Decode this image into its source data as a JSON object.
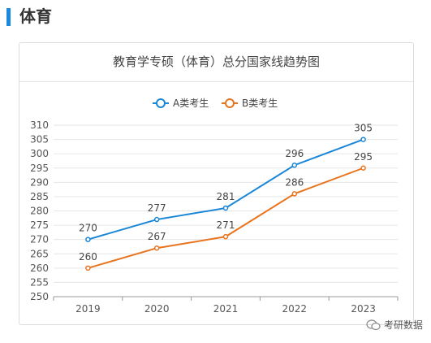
{
  "section": {
    "title": "体育"
  },
  "chart_data": {
    "type": "line",
    "title": "教育学专硕（体育）总分国家线趋势图",
    "categories": [
      "2019",
      "2020",
      "2021",
      "2022",
      "2023"
    ],
    "series": [
      {
        "name": "A类考生",
        "values": [
          270,
          277,
          281,
          296,
          305
        ],
        "color": "#1a86d6"
      },
      {
        "name": "B类考生",
        "values": [
          260,
          267,
          271,
          286,
          295
        ],
        "color": "#e8741e"
      }
    ],
    "ylim": [
      250,
      310
    ],
    "yticks": [
      250,
      255,
      260,
      265,
      270,
      275,
      280,
      285,
      290,
      295,
      300,
      305,
      310
    ],
    "xlabel": "",
    "ylabel": "",
    "legend_position": "top-center",
    "grid": true
  },
  "watermark": {
    "text": "考研数据"
  }
}
